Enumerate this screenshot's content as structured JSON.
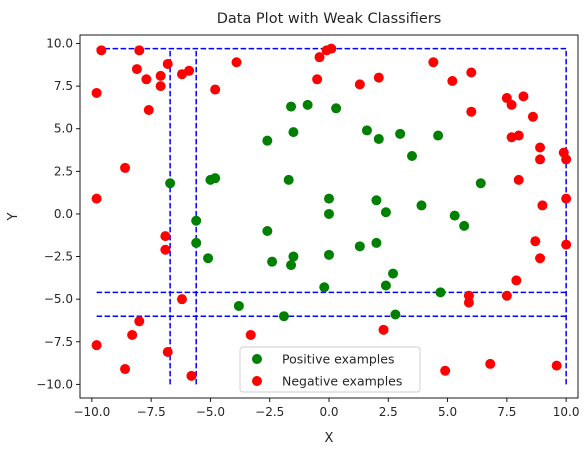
{
  "chart_data": {
    "type": "scatter",
    "title": "Data Plot with Weak Classifiers",
    "xlabel": "X",
    "ylabel": "Y",
    "xlim": [
      -10.5,
      10.5
    ],
    "ylim": [
      -10.8,
      10.5
    ],
    "xticks": [
      -10.0,
      -7.5,
      -5.0,
      -2.5,
      0.0,
      2.5,
      5.0,
      7.5,
      10.0
    ],
    "yticks": [
      -10.0,
      -7.5,
      -5.0,
      -2.5,
      0.0,
      2.5,
      5.0,
      7.5,
      10.0
    ],
    "xtick_labels": [
      "−10.0",
      "−7.5",
      "−5.0",
      "−2.5",
      "0.0",
      "2.5",
      "5.0",
      "7.5",
      "10.0"
    ],
    "ytick_labels": [
      "−10.0",
      "−7.5",
      "−5.0",
      "−2.5",
      "0.0",
      "2.5",
      "5.0",
      "7.5",
      "10.0"
    ],
    "grid": false,
    "legend_position": "bottom-center",
    "series": [
      {
        "name": "Positive examples",
        "color": "#008000",
        "points": [
          [
            -6.7,
            1.8
          ],
          [
            -5.6,
            -0.4
          ],
          [
            -5.6,
            -1.7
          ],
          [
            -5.1,
            -2.6
          ],
          [
            -5.0,
            2.0
          ],
          [
            -4.8,
            2.1
          ],
          [
            -3.8,
            -5.4
          ],
          [
            -2.6,
            4.3
          ],
          [
            -2.6,
            -1.0
          ],
          [
            -2.4,
            -2.8
          ],
          [
            -1.9,
            -6.0
          ],
          [
            -1.7,
            2.0
          ],
          [
            -1.6,
            6.3
          ],
          [
            -1.6,
            -3.0
          ],
          [
            -1.5,
            -2.5
          ],
          [
            -1.5,
            4.8
          ],
          [
            -0.9,
            6.4
          ],
          [
            -0.2,
            -4.3
          ],
          [
            0.0,
            0.9
          ],
          [
            0.0,
            0.0
          ],
          [
            0.0,
            -2.4
          ],
          [
            0.3,
            6.2
          ],
          [
            1.3,
            -1.9
          ],
          [
            1.6,
            4.9
          ],
          [
            2.0,
            0.8
          ],
          [
            2.0,
            -1.7
          ],
          [
            2.1,
            4.4
          ],
          [
            2.4,
            0.1
          ],
          [
            2.4,
            -4.2
          ],
          [
            2.7,
            -3.5
          ],
          [
            2.8,
            -5.9
          ],
          [
            3.0,
            4.7
          ],
          [
            3.5,
            3.4
          ],
          [
            3.9,
            0.5
          ],
          [
            4.6,
            4.6
          ],
          [
            4.7,
            -4.6
          ],
          [
            5.3,
            -0.1
          ],
          [
            5.7,
            -0.7
          ],
          [
            6.4,
            1.8
          ]
        ]
      },
      {
        "name": "Negative examples",
        "color": "#ff0000",
        "points": [
          [
            -9.8,
            7.1
          ],
          [
            -9.8,
            0.9
          ],
          [
            -9.8,
            -7.7
          ],
          [
            -9.6,
            9.6
          ],
          [
            -8.6,
            2.7
          ],
          [
            -8.6,
            -9.1
          ],
          [
            -8.3,
            -7.1
          ],
          [
            -8.1,
            8.5
          ],
          [
            -8.0,
            9.6
          ],
          [
            -8.0,
            -6.3
          ],
          [
            -7.7,
            7.9
          ],
          [
            -7.6,
            6.1
          ],
          [
            -7.1,
            8.1
          ],
          [
            -7.1,
            7.5
          ],
          [
            -6.9,
            -1.3
          ],
          [
            -6.9,
            -2.1
          ],
          [
            -6.8,
            8.8
          ],
          [
            -6.8,
            -8.1
          ],
          [
            -6.2,
            8.2
          ],
          [
            -6.2,
            -5.0
          ],
          [
            -5.9,
            8.4
          ],
          [
            -5.8,
            -9.5
          ],
          [
            -4.8,
            7.3
          ],
          [
            -3.9,
            8.9
          ],
          [
            -3.3,
            -7.1
          ],
          [
            -0.5,
            7.9
          ],
          [
            -0.4,
            9.2
          ],
          [
            -0.1,
            9.6
          ],
          [
            0.1,
            9.7
          ],
          [
            1.3,
            7.6
          ],
          [
            2.1,
            8.0
          ],
          [
            2.3,
            -6.8
          ],
          [
            4.4,
            8.9
          ],
          [
            4.9,
            -9.2
          ],
          [
            5.2,
            7.8
          ],
          [
            5.9,
            -4.8
          ],
          [
            5.9,
            -5.2
          ],
          [
            6.0,
            8.3
          ],
          [
            6.0,
            6.0
          ],
          [
            6.8,
            -8.8
          ],
          [
            7.5,
            6.8
          ],
          [
            7.5,
            -4.8
          ],
          [
            7.7,
            6.4
          ],
          [
            7.7,
            4.5
          ],
          [
            7.9,
            -3.9
          ],
          [
            8.0,
            4.6
          ],
          [
            8.0,
            2.0
          ],
          [
            8.2,
            6.9
          ],
          [
            8.6,
            5.7
          ],
          [
            8.7,
            -1.6
          ],
          [
            8.9,
            3.9
          ],
          [
            8.9,
            3.2
          ],
          [
            8.9,
            -2.6
          ],
          [
            9.0,
            0.5
          ],
          [
            9.6,
            -8.9
          ],
          [
            9.9,
            3.6
          ],
          [
            10.0,
            3.2
          ],
          [
            10.0,
            0.9
          ],
          [
            10.0,
            -1.8
          ]
        ]
      }
    ],
    "classifier_lines": {
      "color": "#0000ff",
      "style": "dashed",
      "vertical_x": [
        -6.7,
        -5.6,
        10.0
      ],
      "vertical_y_range": [
        -10.0,
        9.7
      ],
      "horizontal_y": [
        9.7,
        -4.6,
        -6.0
      ],
      "horizontal_x_range": [
        -9.8,
        10.0
      ]
    }
  }
}
